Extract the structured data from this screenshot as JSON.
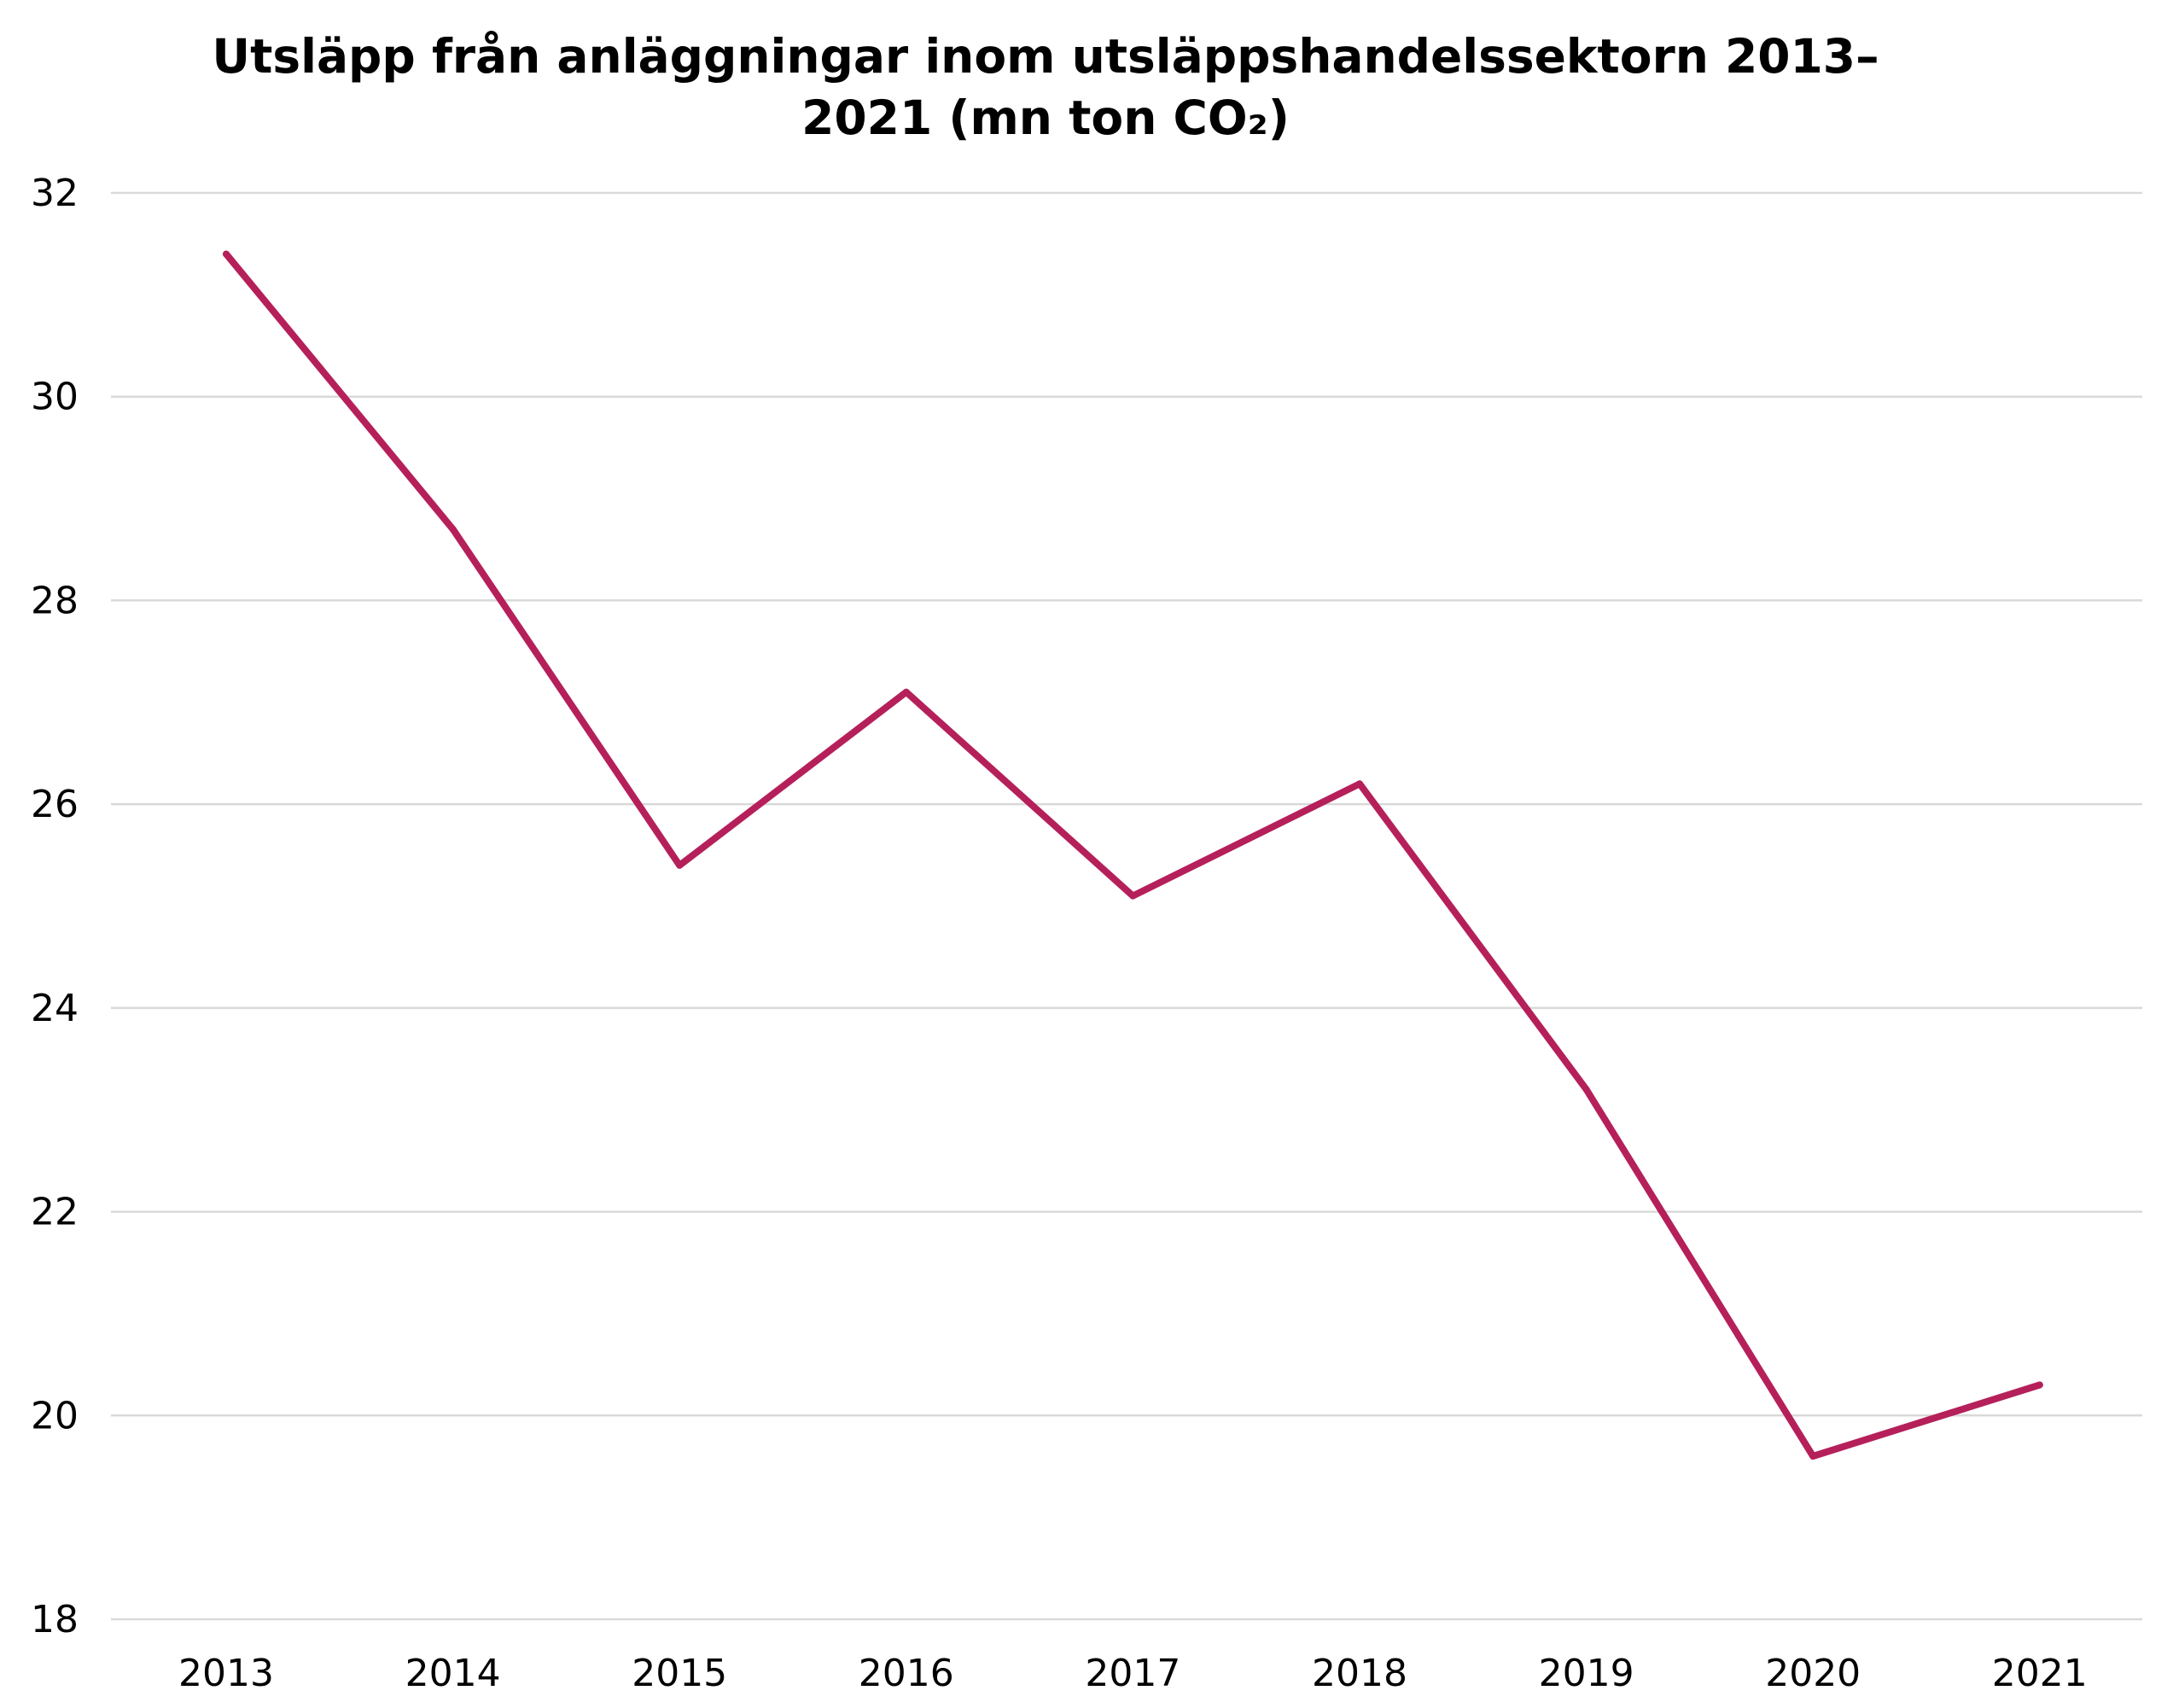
{
  "chart_data": {
    "type": "line",
    "title_lines": [
      "Utsläpp från anläggningar inom utsläppshandelssektorn 2013–",
      "2021 (mn ton CO₂)"
    ],
    "categories": [
      "2013",
      "2014",
      "2015",
      "2016",
      "2017",
      "2018",
      "2019",
      "2020",
      "2021"
    ],
    "series": [
      {
        "values": [
          31.4,
          28.7,
          25.4,
          27.1,
          25.1,
          26.2,
          23.2,
          19.6,
          20.3
        ],
        "color": "#B5205A"
      }
    ],
    "ylim": [
      18,
      32
    ],
    "yticks": [
      18,
      20,
      22,
      24,
      26,
      28,
      30,
      32
    ],
    "grid": true,
    "grid_color": "#d9d9d9",
    "xlabel": "",
    "ylabel": ""
  }
}
